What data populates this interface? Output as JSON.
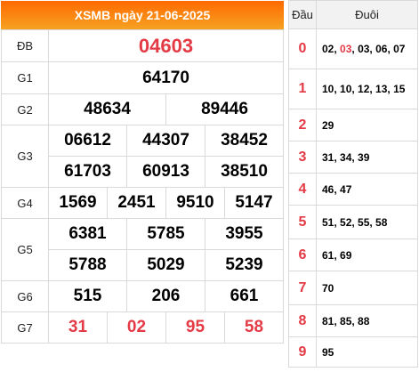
{
  "header": {
    "title": "XSMB ngày 21-06-2025"
  },
  "prizes": [
    {
      "label": "ĐB",
      "rows": [
        [
          "04603"
        ]
      ]
    },
    {
      "label": "G1",
      "rows": [
        [
          "64170"
        ]
      ]
    },
    {
      "label": "G2",
      "rows": [
        [
          "48634",
          "89446"
        ]
      ]
    },
    {
      "label": "G3",
      "rows": [
        [
          "06612",
          "44307",
          "38452"
        ],
        [
          "61703",
          "60913",
          "38510"
        ]
      ]
    },
    {
      "label": "G4",
      "rows": [
        [
          "1569",
          "2451",
          "9510",
          "5147"
        ]
      ]
    },
    {
      "label": "G5",
      "rows": [
        [
          "6381",
          "5785",
          "3955"
        ],
        [
          "5788",
          "5029",
          "5239"
        ]
      ]
    },
    {
      "label": "G6",
      "rows": [
        [
          "515",
          "206",
          "661"
        ]
      ]
    },
    {
      "label": "G7",
      "rows": [
        [
          "31",
          "02",
          "95",
          "58"
        ]
      ]
    }
  ],
  "heads": {
    "col_dau": "Đầu",
    "col_duoi": "Đuôi",
    "rows": [
      {
        "dau": "0",
        "duoi": "02, 03, 03, 06, 07",
        "highlight": "03"
      },
      {
        "dau": "1",
        "duoi": "10, 10, 12, 13, 15"
      },
      {
        "dau": "2",
        "duoi": "29"
      },
      {
        "dau": "3",
        "duoi": "31, 34, 39"
      },
      {
        "dau": "4",
        "duoi": "46, 47"
      },
      {
        "dau": "5",
        "duoi": "51, 52, 55, 58"
      },
      {
        "dau": "6",
        "duoi": "61, 69"
      },
      {
        "dau": "7",
        "duoi": "70"
      },
      {
        "dau": "8",
        "duoi": "81, 85, 88"
      },
      {
        "dau": "9",
        "duoi": "95"
      }
    ]
  },
  "colors": {
    "red": "#e43a45",
    "header_from": "#ff6a00",
    "header_to": "#f6a223"
  }
}
